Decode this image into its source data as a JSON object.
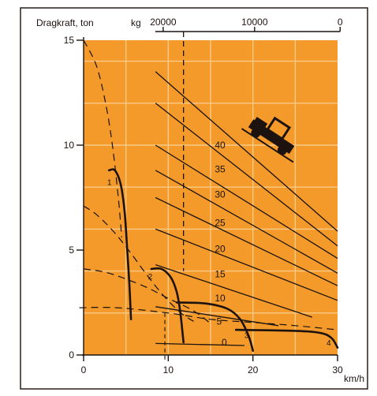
{
  "chart_data": {
    "type": "line",
    "title": "",
    "ylabel": "Dragkraft, ton",
    "xlabel": "km/h",
    "xlim": [
      0,
      30
    ],
    "ylim": [
      0,
      15
    ],
    "x_ticks": [
      0,
      10,
      20,
      30
    ],
    "y_ticks": [
      0,
      5,
      10,
      15
    ],
    "top_axis": {
      "label": "kg",
      "ticks": [
        {
          "label": "20000",
          "at_speed": 9.4
        },
        {
          "label": "10000",
          "at_speed": 20.2
        },
        {
          "label": "0",
          "at_speed": 30.3
        }
      ],
      "marker_speed": 11.8
    },
    "grid": true,
    "colors": {
      "plot_background": "#f39a2a",
      "grid": "#f8ca86",
      "curve": "#1c1210",
      "axis": "#1c1210"
    },
    "gear_curves": [
      {
        "label": "1",
        "label_at": [
          2.8,
          8.1
        ],
        "points": [
          [
            3.0,
            8.8
          ],
          [
            3.7,
            8.8
          ],
          [
            4.4,
            8.1
          ],
          [
            4.85,
            6.8
          ],
          [
            5.15,
            5.0
          ],
          [
            5.4,
            3.4
          ],
          [
            5.6,
            1.7
          ]
        ]
      },
      {
        "label": "2",
        "label_at": [
          7.6,
          3.6
        ],
        "points": [
          [
            8.0,
            4.1
          ],
          [
            9.2,
            4.1
          ],
          [
            10.3,
            3.7
          ],
          [
            11.0,
            3.0
          ],
          [
            11.4,
            2.1
          ],
          [
            11.7,
            1.0
          ],
          [
            11.8,
            0.6
          ]
        ]
      },
      {
        "label": "3",
        "label_at": [
          19.0,
          0.8
        ],
        "points": [
          [
            11.0,
            2.5
          ],
          [
            14.5,
            2.45
          ],
          [
            17.0,
            2.2
          ],
          [
            18.5,
            1.7
          ],
          [
            19.5,
            0.9
          ],
          [
            20.0,
            0.2
          ]
        ]
      },
      {
        "label": "4",
        "label_at": [
          28.7,
          0.45
        ],
        "points": [
          [
            18.0,
            1.2
          ],
          [
            25.0,
            1.15
          ],
          [
            28.0,
            1.05
          ],
          [
            29.3,
            0.8
          ],
          [
            30.0,
            0.35
          ]
        ]
      }
    ],
    "dashed_curves": [
      {
        "points": [
          [
            0.0,
            15.0
          ],
          [
            1.5,
            13.8
          ],
          [
            2.6,
            12.0
          ],
          [
            3.4,
            10.0
          ],
          [
            4.1,
            7.5
          ],
          [
            4.5,
            5.6
          ]
        ]
      },
      {
        "points": [
          [
            0.0,
            7.1
          ],
          [
            1.5,
            6.7
          ],
          [
            3.5,
            5.9
          ],
          [
            5.5,
            4.9
          ],
          [
            7.5,
            3.8
          ],
          [
            9.5,
            2.8
          ],
          [
            11.5,
            2.0
          ],
          [
            13.0,
            1.6
          ]
        ]
      },
      {
        "points": [
          [
            0.0,
            4.1
          ],
          [
            3.0,
            3.9
          ],
          [
            7.0,
            3.3
          ],
          [
            10.0,
            2.7
          ],
          [
            13.0,
            2.1
          ],
          [
            15.0,
            1.5
          ]
        ]
      },
      {
        "points": [
          [
            -0.5,
            2.25
          ],
          [
            4.0,
            2.25
          ],
          [
            10.0,
            2.0
          ],
          [
            15.0,
            1.7
          ],
          [
            20.0,
            1.55
          ],
          [
            25.0,
            1.4
          ],
          [
            30.0,
            1.2
          ]
        ]
      }
    ],
    "slope_lines": [
      {
        "label": "0",
        "label_at": [
          16.3,
          0.45
        ],
        "points": [
          [
            8.5,
            0.55
          ],
          [
            19.0,
            0.45
          ]
        ]
      },
      {
        "label": "5",
        "label_at": [
          15.7,
          1.45
        ],
        "points": [
          [
            8.5,
            2.3
          ],
          [
            23.0,
            1.4
          ]
        ]
      },
      {
        "label": "10",
        "label_at": [
          15.5,
          2.55
        ],
        "points": [
          [
            8.5,
            4.3
          ],
          [
            27.0,
            1.8
          ]
        ]
      },
      {
        "label": "15",
        "label_at": [
          15.5,
          3.7
        ],
        "points": [
          [
            8.5,
            6.0
          ],
          [
            30.0,
            2.6
          ]
        ]
      },
      {
        "label": "20",
        "label_at": [
          15.5,
          4.9
        ],
        "points": [
          [
            8.5,
            7.5
          ],
          [
            30.0,
            3.3
          ]
        ]
      },
      {
        "label": "25",
        "label_at": [
          15.5,
          6.15
        ],
        "points": [
          [
            8.5,
            8.8
          ],
          [
            30.0,
            3.9
          ]
        ]
      },
      {
        "label": "30",
        "label_at": [
          15.5,
          7.5
        ],
        "points": [
          [
            8.5,
            10.0
          ],
          [
            30.0,
            4.6
          ]
        ]
      },
      {
        "label": "35",
        "label_at": [
          15.5,
          8.7
        ],
        "points": [
          [
            8.5,
            12.0
          ],
          [
            30.0,
            5.2
          ]
        ]
      },
      {
        "label": "40",
        "label_at": [
          15.5,
          9.85
        ],
        "points": [
          [
            8.5,
            13.5
          ],
          [
            30.0,
            5.9
          ]
        ]
      }
    ],
    "tractor_icon": "tractor-climbing-slope-icon"
  }
}
